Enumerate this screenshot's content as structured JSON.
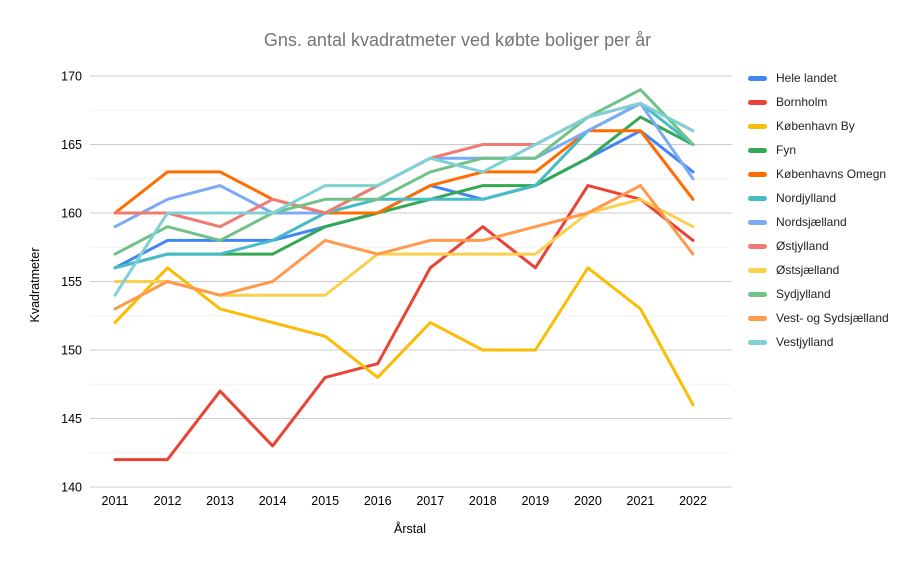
{
  "title": "Gns. antal kvadratmeter ved købte boliger per år",
  "chart_data": {
    "type": "line",
    "x": [
      2011,
      2012,
      2013,
      2014,
      2015,
      2016,
      2017,
      2018,
      2019,
      2020,
      2021,
      2022
    ],
    "xlabel": "Årstal",
    "ylabel": "Kvadratmeter",
    "ylim": [
      140,
      170
    ],
    "y_major_ticks": [
      140,
      145,
      150,
      155,
      160,
      165,
      170
    ],
    "y_minor_step": 2.5,
    "grid": "on",
    "legend_position": "right",
    "series": [
      {
        "name": "Hele landet",
        "color": "#4285F4",
        "values": [
          156,
          158,
          158,
          158,
          159,
          160,
          162,
          161,
          162,
          164,
          166,
          163
        ]
      },
      {
        "name": "Bornholm",
        "color": "#EA4335",
        "values": [
          142,
          142,
          147,
          143,
          148,
          149,
          156,
          159,
          156,
          162,
          161,
          158
        ]
      },
      {
        "name": "København By",
        "color": "#FBBC04",
        "values": [
          152,
          156,
          153,
          152,
          151,
          148,
          152,
          150,
          150,
          156,
          153,
          146
        ]
      },
      {
        "name": "Fyn",
        "color": "#34A853",
        "values": [
          156,
          157,
          157,
          157,
          159,
          160,
          161,
          162,
          162,
          164,
          167,
          165
        ]
      },
      {
        "name": "Københavns Omegn",
        "color": "#FF6D01",
        "values": [
          160,
          163,
          163,
          161,
          160,
          160,
          162,
          163,
          163,
          166,
          166,
          161
        ]
      },
      {
        "name": "Nordjylland",
        "color": "#46BDC6",
        "values": [
          156,
          157,
          157,
          158,
          160,
          161,
          161,
          161,
          162,
          166,
          168,
          165
        ]
      },
      {
        "name": "Nordsjælland",
        "color": "#7BAAF7",
        "values": [
          159,
          161,
          162,
          160,
          160,
          162,
          164,
          164,
          164,
          166,
          168,
          162.5
        ]
      },
      {
        "name": "Østjylland",
        "color": "#F07B72",
        "values": [
          160,
          160,
          159,
          161,
          160,
          162,
          164,
          165,
          165,
          167,
          168,
          166
        ]
      },
      {
        "name": "Østsjælland",
        "color": "#FCD04F",
        "values": [
          155,
          155,
          154,
          154,
          154,
          157,
          157,
          157,
          157,
          160,
          161,
          159
        ]
      },
      {
        "name": "Sydjylland",
        "color": "#71C287",
        "values": [
          157,
          159,
          158,
          160,
          161,
          161,
          163,
          164,
          164,
          167,
          169,
          165
        ]
      },
      {
        "name": "Vest- og Sydsjælland",
        "color": "#FF994D",
        "values": [
          153,
          155,
          154,
          155,
          158,
          157,
          158,
          158,
          159,
          160,
          162,
          157
        ]
      },
      {
        "name": "Vestjylland",
        "color": "#7ED1D7",
        "values": [
          154,
          160,
          160,
          160,
          162,
          162,
          164,
          163,
          165,
          167,
          168,
          166
        ]
      }
    ]
  }
}
